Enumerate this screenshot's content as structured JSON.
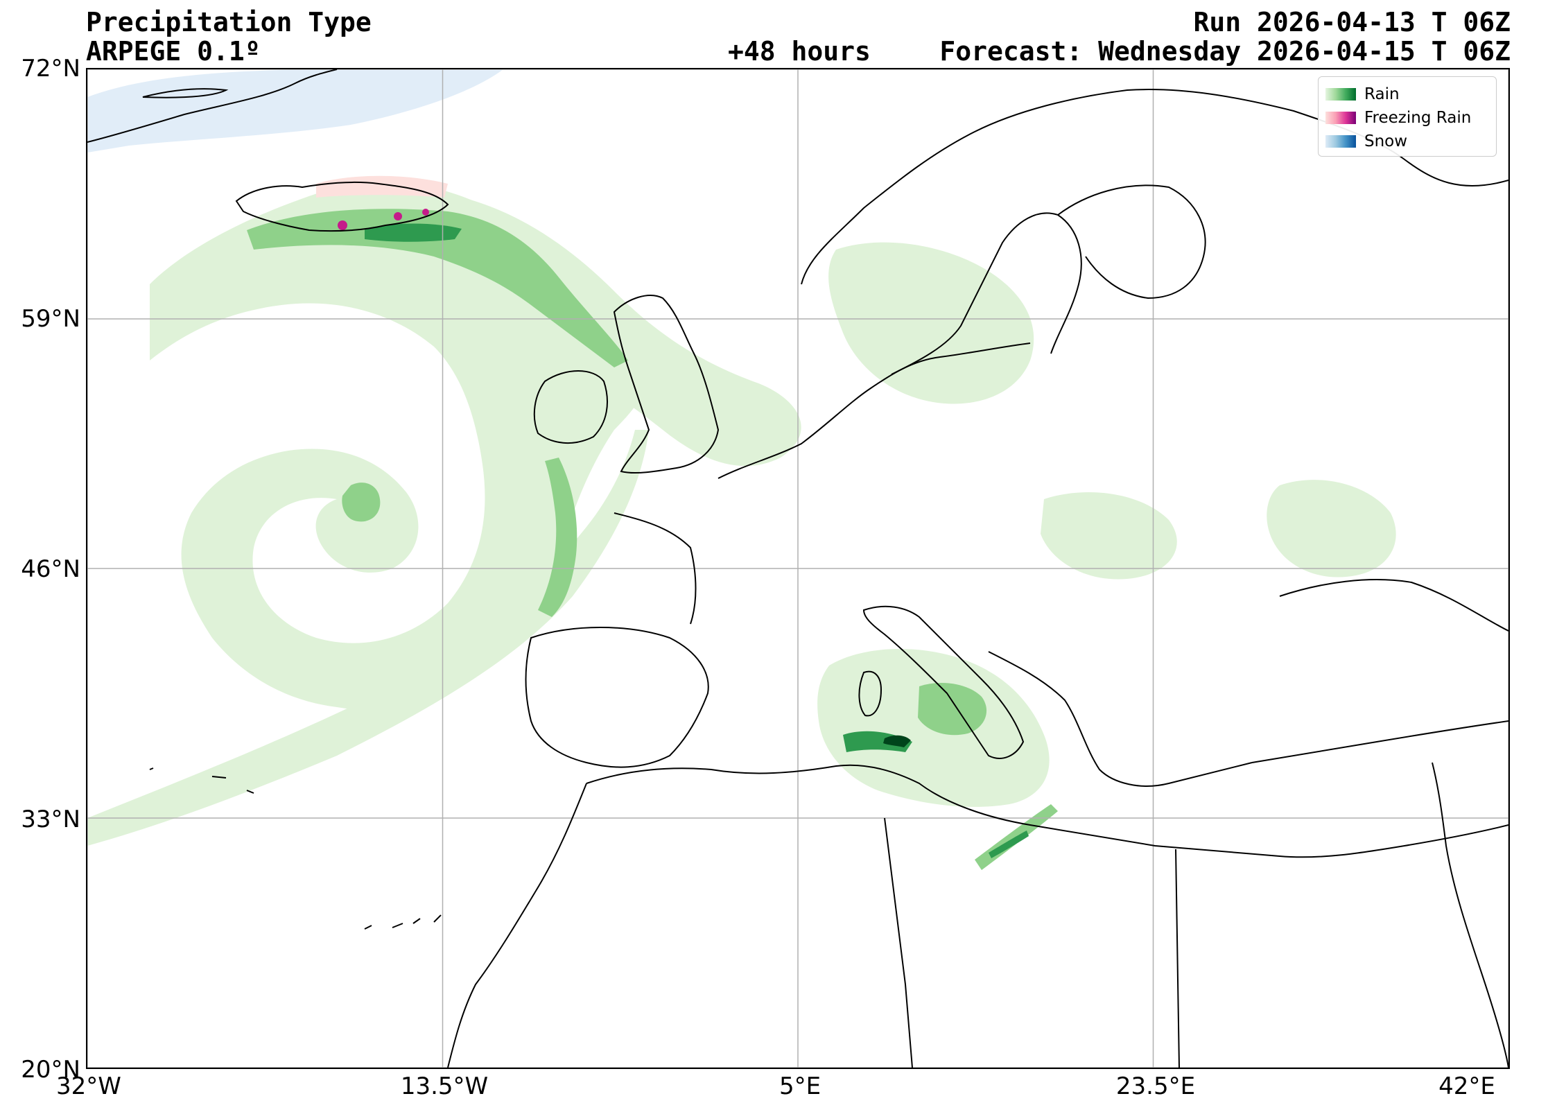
{
  "header": {
    "title": "Precipitation Type",
    "model": "ARPEGE 0.1º",
    "run": "Run 2026-04-13 T 06Z",
    "lead": "+48 hours",
    "forecast": "Forecast: Wednesday 2026-04-15 T 06Z"
  },
  "map": {
    "lon_range": [
      -32,
      42
    ],
    "lat_range": [
      20,
      72
    ],
    "lat_ticks": [
      {
        "value": 72,
        "label": "72°N"
      },
      {
        "value": 59,
        "label": "59°N"
      },
      {
        "value": 46,
        "label": "46°N"
      },
      {
        "value": 33,
        "label": "33°N"
      },
      {
        "value": 20,
        "label": "20°N"
      }
    ],
    "lon_ticks": [
      {
        "value": -32,
        "label": "32°W"
      },
      {
        "value": -13.5,
        "label": "13.5°W"
      },
      {
        "value": 5,
        "label": "5°E"
      },
      {
        "value": 23.5,
        "label": "23.5°E"
      },
      {
        "value": 42,
        "label": "42°E"
      }
    ],
    "gridlines": true
  },
  "legend": {
    "placement": "top-right",
    "items": [
      {
        "label": "Rain",
        "colors": [
          "#e5f5e0",
          "#a1d99b",
          "#41ab5d",
          "#006d2c"
        ]
      },
      {
        "label": "Freezing Rain",
        "colors": [
          "#fde0dd",
          "#fa9fb5",
          "#dd3497",
          "#7a0177"
        ]
      },
      {
        "label": "Snow",
        "colors": [
          "#deebf7",
          "#9ecae1",
          "#4292c6",
          "#08519c"
        ]
      }
    ]
  },
  "colors": {
    "rain_light": "#dff2d8",
    "rain_mid": "#8fd18a",
    "rain_dark": "#2e9a4f",
    "rain_darkest": "#00441b",
    "freezing_light": "#fde0dd",
    "freezing_dark": "#c51b8a",
    "snow_light": "#deebf7",
    "coast": "#000000",
    "grid": "#b0b0b0"
  }
}
